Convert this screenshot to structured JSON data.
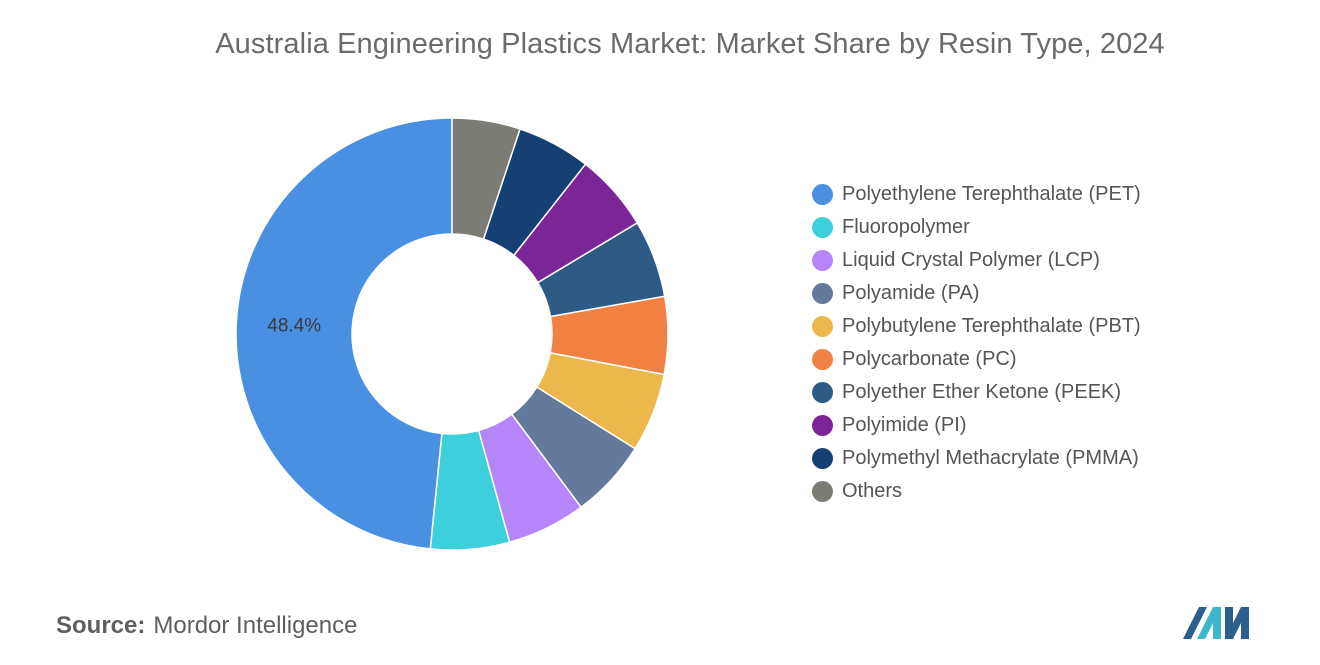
{
  "title": "Australia Engineering Plastics Market: Market Share by Resin Type, 2024",
  "source": {
    "prefix": "Source:",
    "text": "Mordor Intelligence"
  },
  "logo": {
    "icon": "mordor-intelligence-logo",
    "colors": [
      "#2d5f8c",
      "#3fb6c9"
    ]
  },
  "chart_data": {
    "type": "pie",
    "style": "donut",
    "legend_position": "right",
    "slices": [
      {
        "label": "Polyethylene Terephthalate (PET)",
        "value": 48.4,
        "color": "#4a90e2",
        "data_label": "48.4%"
      },
      {
        "label": "Fluoropolymer",
        "value": 5.9,
        "color": "#3ecfdc",
        "data_label": ""
      },
      {
        "label": "Liquid Crystal Polymer (LCP)",
        "value": 5.9,
        "color": "#b486fa",
        "data_label": ""
      },
      {
        "label": "Polyamide (PA)",
        "value": 5.9,
        "color": "#65799c",
        "data_label": ""
      },
      {
        "label": "Polybutylene Terephthalate (PBT)",
        "value": 5.9,
        "color": "#ecb84c",
        "data_label": ""
      },
      {
        "label": "Polycarbonate (PC)",
        "value": 5.8,
        "color": "#f08143",
        "data_label": ""
      },
      {
        "label": "Polyether Ether Ketone (PEEK)",
        "value": 5.8,
        "color": "#2e5b85",
        "data_label": ""
      },
      {
        "label": "Polyimide (PI)",
        "value": 5.8,
        "color": "#7b2596",
        "data_label": ""
      },
      {
        "label": "Polymethyl Methacrylate (PMMA)",
        "value": 5.5,
        "color": "#163f73",
        "data_label": ""
      },
      {
        "label": "Others",
        "value": 5.1,
        "color": "#7c7c74",
        "data_label": ""
      }
    ]
  }
}
